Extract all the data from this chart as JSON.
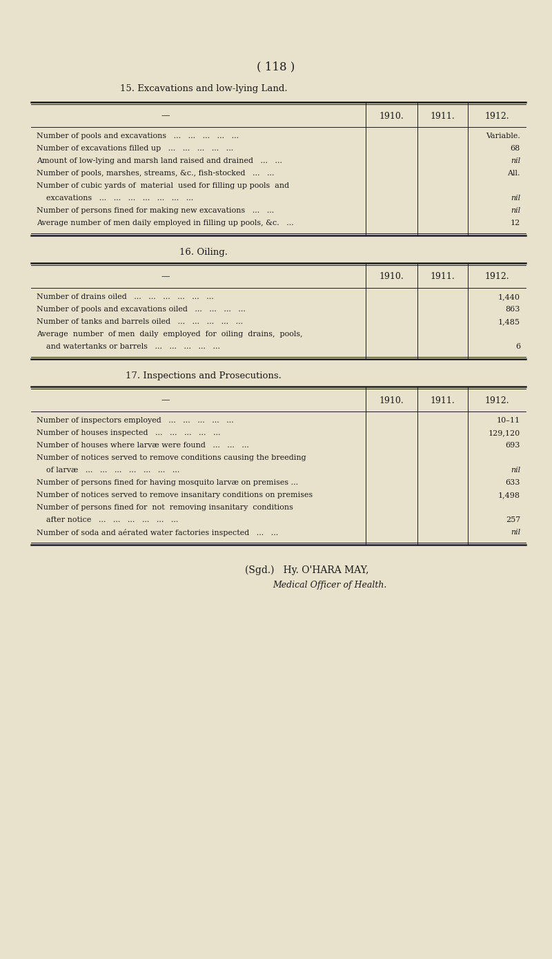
{
  "bg_color": "#e8e2cc",
  "text_color": "#1a1a1a",
  "page_number": "( 118 )",
  "section15_title": "15. Excavations and low-lying Land.",
  "section16_title": "16. Oiling.",
  "section17_title": "17. Inspections and Prosecutions.",
  "year_headers": [
    "1910.",
    "1911.",
    "1912."
  ],
  "section15_rows": [
    [
      "Number of pools and excavations   ...   ...   ...   ...   ...",
      "Variable."
    ],
    [
      "Number of excavations filled up   ...   ...   ...   ...   ...",
      "68"
    ],
    [
      "Amount of low-lying and marsh land raised and drained   ...   ...",
      "nil"
    ],
    [
      "Number of pools, marshes, streams, &c., fish-stocked   ...   ...",
      "All."
    ],
    [
      "Number of cubic yards of  material  used for filling up pools  and",
      ""
    ],
    [
      "    excavations   ...   ...   ...   ...   ...   ...   ...",
      "nil"
    ],
    [
      "Number of persons fined for making new excavations   ...   ...",
      "nil"
    ],
    [
      "Average number of men daily employed in filling up pools, &c.   ...",
      "12"
    ]
  ],
  "section16_rows": [
    [
      "Number of drains oiled   ...   ...   ...   ...   ...   ...",
      "1,440"
    ],
    [
      "Number of pools and excavations oiled   ...   ...   ...   ...",
      "863"
    ],
    [
      "Number of tanks and barrels oiled   ...   ...   ...   ...   ...",
      "1,485"
    ],
    [
      "Average  number  of men  daily  employed  for  oiling  drains,  pools,",
      ""
    ],
    [
      "    and watertanks or barrels   ...   ...   ...   ...   ...",
      "6"
    ]
  ],
  "section17_rows": [
    [
      "Number of inspectors employed   ...   ...   ...   ...   ...",
      "10–11"
    ],
    [
      "Number of houses inspected   ...   ...   ...   ...   ...",
      "129,120"
    ],
    [
      "Number of houses where larvæ were found   ...   ...   ...",
      "693"
    ],
    [
      "Number of notices served to remove conditions causing the breeding",
      ""
    ],
    [
      "    of larvæ   ...   ...   ...   ...   ...   ...   ...",
      "nil"
    ],
    [
      "Number of persons fined for having mosquito larvæ on premises ...",
      "633"
    ],
    [
      "Number of notices served to remove insanitary conditions on premises",
      "1,498"
    ],
    [
      "Number of persons fined for  not  removing insanitary  conditions",
      ""
    ],
    [
      "    after notice   ...   ...   ...   ...   ...   ...",
      "257"
    ],
    [
      "Number of soda and aérated water factories inspected   ...   ...",
      "nil"
    ]
  ],
  "signature_line1": "(Sgd.)   Hy. O'HARA MAY,",
  "signature_line2": "Medical Officer of Health."
}
